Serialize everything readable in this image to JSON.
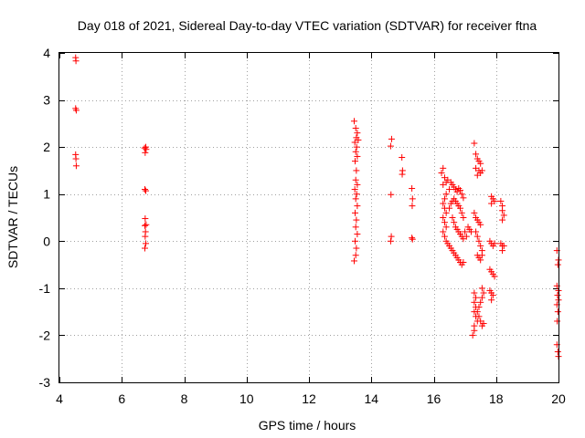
{
  "chart_data": {
    "type": "scatter",
    "title": "Day 018 of 2021, Sidereal Day-to-day VTEC variation (SDTVAR) for receiver ftna",
    "xlabel": "GPS time / hours",
    "ylabel": "SDTVAR / TECUs",
    "xlim": [
      4,
      20
    ],
    "ylim": [
      -3,
      4
    ],
    "xticks": [
      "4",
      "6",
      "8",
      "10",
      "12",
      "14",
      "16",
      "18",
      "20"
    ],
    "yticks": [
      "-3",
      "-2",
      "-1",
      "0",
      "1",
      "2",
      "3",
      "4"
    ],
    "grid": true,
    "marker": "+",
    "colors": {
      "series": "#ff0000",
      "grid": "#a0a0a0",
      "frame": "#000000"
    },
    "series": [
      {
        "name": "SDTVAR",
        "points": [
          [
            4.52,
            3.9
          ],
          [
            4.53,
            3.83
          ],
          [
            4.52,
            2.82
          ],
          [
            4.54,
            2.78
          ],
          [
            4.52,
            1.84
          ],
          [
            4.53,
            1.75
          ],
          [
            4.54,
            1.6
          ],
          [
            6.73,
            1.98
          ],
          [
            6.78,
            1.95
          ],
          [
            6.75,
            1.88
          ],
          [
            6.77,
            2.0
          ],
          [
            6.74,
            1.1
          ],
          [
            6.77,
            1.07
          ],
          [
            6.75,
            0.48
          ],
          [
            6.78,
            0.35
          ],
          [
            6.74,
            0.33
          ],
          [
            6.76,
            0.2
          ],
          [
            6.75,
            0.1
          ],
          [
            6.77,
            -0.05
          ],
          [
            6.74,
            -0.15
          ],
          [
            13.45,
            2.55
          ],
          [
            13.5,
            2.4
          ],
          [
            13.55,
            2.3
          ],
          [
            13.52,
            2.2
          ],
          [
            13.58,
            2.15
          ],
          [
            13.47,
            2.1
          ],
          [
            13.53,
            2.0
          ],
          [
            13.5,
            1.9
          ],
          [
            13.55,
            1.8
          ],
          [
            13.48,
            1.7
          ],
          [
            13.52,
            1.5
          ],
          [
            13.5,
            1.3
          ],
          [
            13.55,
            1.2
          ],
          [
            13.47,
            1.1
          ],
          [
            13.53,
            1.0
          ],
          [
            13.5,
            0.9
          ],
          [
            13.55,
            0.75
          ],
          [
            13.48,
            0.6
          ],
          [
            13.52,
            0.45
          ],
          [
            13.5,
            0.3
          ],
          [
            13.55,
            0.15
          ],
          [
            13.48,
            0.0
          ],
          [
            13.52,
            -0.15
          ],
          [
            13.5,
            -0.3
          ],
          [
            13.45,
            -0.42
          ],
          [
            14.65,
            2.17
          ],
          [
            14.62,
            2.02
          ],
          [
            14.63,
            0.99
          ],
          [
            14.64,
            0.1
          ],
          [
            14.62,
            0.0
          ],
          [
            14.98,
            1.78
          ],
          [
            15.0,
            1.5
          ],
          [
            14.99,
            1.42
          ],
          [
            15.3,
            1.12
          ],
          [
            15.32,
            0.9
          ],
          [
            15.31,
            0.75
          ],
          [
            15.3,
            0.07
          ],
          [
            15.32,
            0.04
          ],
          [
            16.3,
            1.55
          ],
          [
            16.25,
            1.45
          ],
          [
            16.35,
            1.35
          ],
          [
            16.4,
            1.25
          ],
          [
            16.3,
            1.2
          ],
          [
            16.45,
            1.3
          ],
          [
            16.55,
            1.25
          ],
          [
            16.6,
            1.2
          ],
          [
            16.65,
            1.15
          ],
          [
            16.7,
            1.1
          ],
          [
            16.75,
            1.05
          ],
          [
            16.8,
            1.12
          ],
          [
            16.85,
            1.08
          ],
          [
            16.9,
            1.0
          ],
          [
            16.95,
            0.92
          ],
          [
            16.5,
            1.1
          ],
          [
            16.4,
            1.0
          ],
          [
            16.35,
            0.9
          ],
          [
            16.3,
            0.8
          ],
          [
            16.35,
            0.7
          ],
          [
            16.4,
            0.6
          ],
          [
            16.3,
            0.5
          ],
          [
            16.35,
            0.4
          ],
          [
            16.4,
            0.3
          ],
          [
            16.3,
            0.2
          ],
          [
            16.35,
            0.1
          ],
          [
            16.4,
            0.0
          ],
          [
            16.45,
            -0.05
          ],
          [
            16.5,
            -0.1
          ],
          [
            16.55,
            -0.15
          ],
          [
            16.6,
            -0.2
          ],
          [
            16.65,
            -0.25
          ],
          [
            16.7,
            -0.3
          ],
          [
            16.75,
            -0.35
          ],
          [
            16.8,
            -0.4
          ],
          [
            16.85,
            -0.45
          ],
          [
            16.9,
            -0.5
          ],
          [
            16.95,
            -0.45
          ],
          [
            16.5,
            0.7
          ],
          [
            16.55,
            0.8
          ],
          [
            16.6,
            0.85
          ],
          [
            16.65,
            0.9
          ],
          [
            16.7,
            0.85
          ],
          [
            16.75,
            0.8
          ],
          [
            16.8,
            0.75
          ],
          [
            16.85,
            0.7
          ],
          [
            16.9,
            0.6
          ],
          [
            16.95,
            0.5
          ],
          [
            16.6,
            0.5
          ],
          [
            16.65,
            0.4
          ],
          [
            16.7,
            0.3
          ],
          [
            16.75,
            0.25
          ],
          [
            16.8,
            0.2
          ],
          [
            16.85,
            0.15
          ],
          [
            16.9,
            0.1
          ],
          [
            16.95,
            0.05
          ],
          [
            17.0,
            0.2
          ],
          [
            17.05,
            0.1
          ],
          [
            17.1,
            0.3
          ],
          [
            17.15,
            0.25
          ],
          [
            17.2,
            0.2
          ],
          [
            17.3,
            2.08
          ],
          [
            17.35,
            1.85
          ],
          [
            17.4,
            1.75
          ],
          [
            17.45,
            1.7
          ],
          [
            17.5,
            1.65
          ],
          [
            17.35,
            1.55
          ],
          [
            17.45,
            1.5
          ],
          [
            17.5,
            1.45
          ],
          [
            17.55,
            1.5
          ],
          [
            17.4,
            1.4
          ],
          [
            17.3,
            0.6
          ],
          [
            17.35,
            0.5
          ],
          [
            17.4,
            0.45
          ],
          [
            17.45,
            0.4
          ],
          [
            17.5,
            0.35
          ],
          [
            17.35,
            0.2
          ],
          [
            17.4,
            0.1
          ],
          [
            17.45,
            0.0
          ],
          [
            17.5,
            -0.1
          ],
          [
            17.55,
            -0.2
          ],
          [
            17.4,
            -0.3
          ],
          [
            17.45,
            -0.35
          ],
          [
            17.5,
            -0.4
          ],
          [
            17.55,
            -0.3
          ],
          [
            17.3,
            -1.1
          ],
          [
            17.35,
            -1.2
          ],
          [
            17.3,
            -1.3
          ],
          [
            17.35,
            -1.4
          ],
          [
            17.3,
            -1.5
          ],
          [
            17.35,
            -1.6
          ],
          [
            17.4,
            -1.5
          ],
          [
            17.45,
            -1.4
          ],
          [
            17.5,
            -1.3
          ],
          [
            17.55,
            -1.2
          ],
          [
            17.6,
            -1.1
          ],
          [
            17.55,
            -1.0
          ],
          [
            17.3,
            -1.9
          ],
          [
            17.25,
            -2.0
          ],
          [
            17.3,
            -1.8
          ],
          [
            17.4,
            -1.7
          ],
          [
            17.45,
            -1.6
          ],
          [
            17.5,
            -1.7
          ],
          [
            17.55,
            -1.8
          ],
          [
            17.6,
            -1.75
          ],
          [
            17.85,
            0.95
          ],
          [
            17.9,
            0.9
          ],
          [
            17.95,
            0.85
          ],
          [
            17.85,
            0.8
          ],
          [
            17.8,
            0.0
          ],
          [
            17.85,
            -0.05
          ],
          [
            17.9,
            -0.1
          ],
          [
            17.95,
            -0.05
          ],
          [
            17.8,
            -0.6
          ],
          [
            17.85,
            -0.65
          ],
          [
            17.9,
            -0.7
          ],
          [
            17.95,
            -0.75
          ],
          [
            17.8,
            -1.05
          ],
          [
            17.85,
            -1.1
          ],
          [
            17.9,
            -1.15
          ],
          [
            17.85,
            -1.25
          ],
          [
            18.15,
            0.85
          ],
          [
            18.2,
            0.75
          ],
          [
            18.2,
            0.65
          ],
          [
            18.25,
            0.55
          ],
          [
            18.2,
            0.45
          ],
          [
            18.15,
            -0.05
          ],
          [
            18.2,
            -0.1
          ],
          [
            18.25,
            -0.1
          ],
          [
            18.2,
            -0.2
          ],
          [
            19.95,
            -0.2
          ],
          [
            20.0,
            -0.4
          ],
          [
            19.98,
            -0.5
          ],
          [
            19.95,
            -0.95
          ],
          [
            20.0,
            -1.05
          ],
          [
            19.97,
            -1.15
          ],
          [
            20.0,
            -1.25
          ],
          [
            19.95,
            -1.35
          ],
          [
            19.98,
            -1.5
          ],
          [
            19.96,
            -1.7
          ],
          [
            19.95,
            -2.2
          ],
          [
            19.98,
            -2.35
          ],
          [
            20.0,
            -2.45
          ]
        ]
      }
    ]
  }
}
